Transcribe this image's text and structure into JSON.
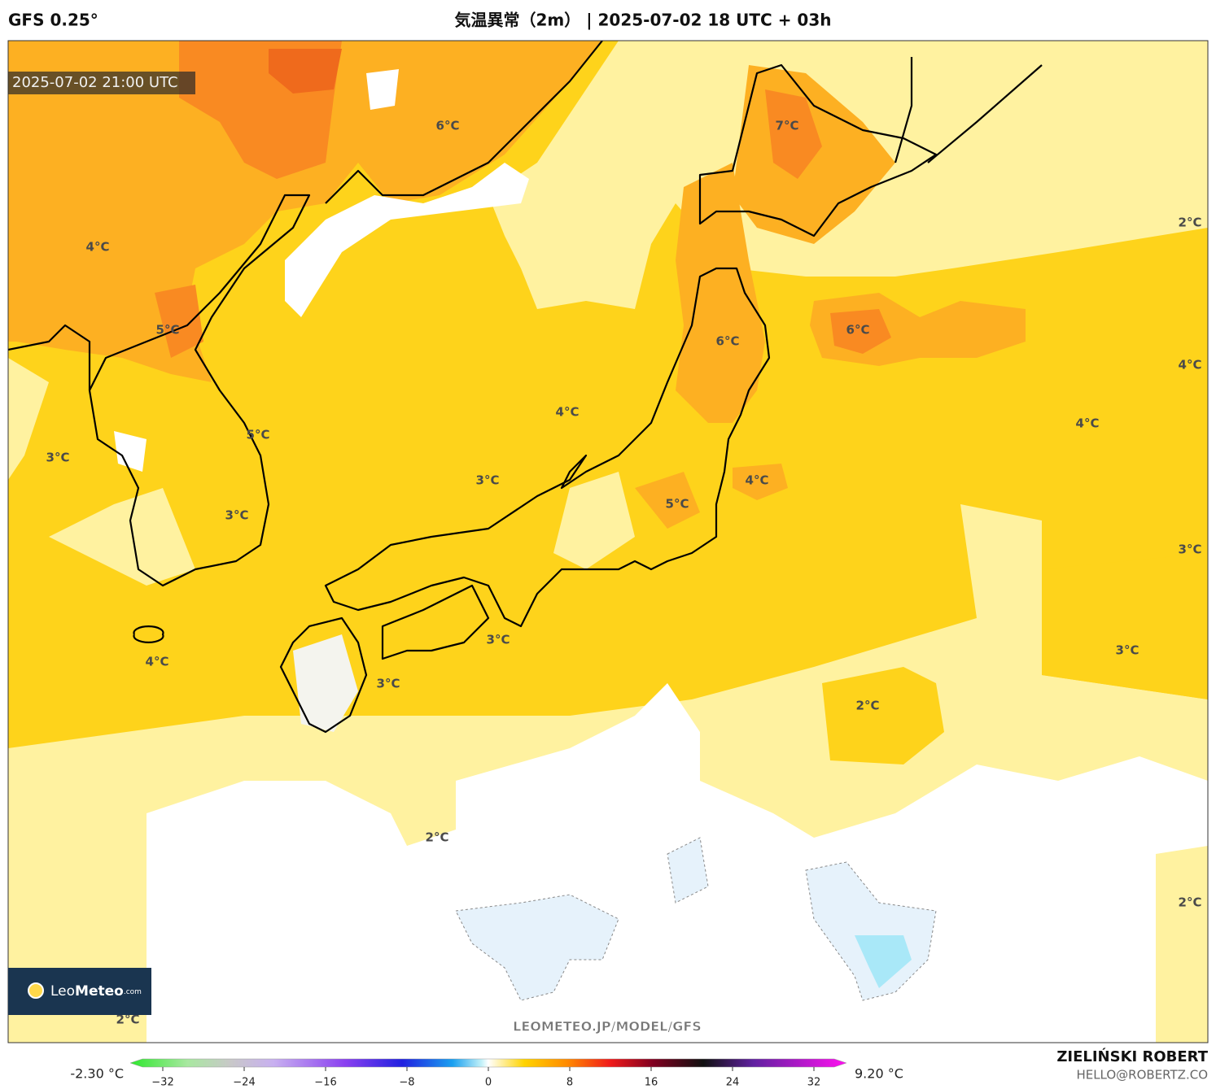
{
  "header": {
    "model": "GFS 0.25°",
    "title": "気温異常（2m） | 2025-07-02 18 UTC + 03h"
  },
  "map": {
    "valid_time": "2025-07-02 21:00 UTC",
    "contour_labels": [
      "6°C",
      "7°C",
      "4°C",
      "2°C",
      "6°C",
      "5°C",
      "6°C",
      "4°C",
      "4°C",
      "4°C",
      "5°C",
      "3°C",
      "3°C",
      "4°C",
      "5°C",
      "3°C",
      "3°C",
      "3°C",
      "3°C",
      "4°C",
      "3°C",
      "2°C",
      "2°C",
      "2°C",
      "2°C"
    ],
    "logo": {
      "light": "Leo",
      "bold": "Meteo",
      "suffix": ".com"
    },
    "watermark": "LEOMETEO.JP/MODEL/GFS"
  },
  "colorbar": {
    "min_label": "-2.30 °C",
    "max_label": "9.20 °C",
    "lim": [
      -35.2,
      35.2
    ],
    "ticks": [
      {
        "value": -32,
        "label": "−32"
      },
      {
        "value": -24,
        "label": "−24"
      },
      {
        "value": -16,
        "label": "−16"
      },
      {
        "value": -8,
        "label": "−8"
      },
      0,
      8,
      16,
      24,
      32
    ]
  },
  "footer": {
    "author": "ZIELIŃSKI ROBERT",
    "email": "HELLO@ROBERTZ.CO"
  }
}
